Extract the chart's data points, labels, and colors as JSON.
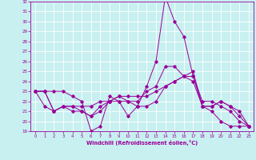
{
  "xlabel": "Windchill (Refroidissement éolien,°C)",
  "background_color": "#c8f0f0",
  "line_color": "#990099",
  "grid_color": "#ffffff",
  "xlim": [
    -0.5,
    23.5
  ],
  "ylim": [
    19,
    32
  ],
  "yticks": [
    19,
    20,
    21,
    22,
    23,
    24,
    25,
    26,
    27,
    28,
    29,
    30,
    31,
    32
  ],
  "xticks": [
    0,
    1,
    2,
    3,
    4,
    5,
    6,
    7,
    8,
    9,
    10,
    11,
    12,
    13,
    14,
    15,
    16,
    17,
    18,
    19,
    20,
    21,
    22,
    23
  ],
  "line1_x": [
    0,
    1,
    2,
    3,
    4,
    5,
    6,
    7,
    8,
    9,
    10,
    11,
    12,
    13,
    14,
    15,
    16,
    17,
    18,
    19,
    20,
    21,
    22,
    23
  ],
  "line1_y": [
    23.0,
    23.0,
    23.0,
    23.0,
    22.5,
    22.0,
    19.0,
    19.5,
    22.5,
    22.0,
    20.5,
    21.5,
    23.5,
    26.0,
    32.5,
    30.0,
    28.5,
    24.5,
    21.5,
    21.0,
    20.0,
    19.5,
    19.5,
    19.5
  ],
  "line2_x": [
    0,
    1,
    2,
    3,
    4,
    5,
    6,
    7,
    8,
    9,
    10,
    11,
    12,
    13,
    14,
    15,
    16,
    17,
    18,
    19,
    20,
    21,
    22,
    23
  ],
  "line2_y": [
    23.0,
    23.0,
    21.0,
    21.5,
    21.5,
    21.0,
    20.5,
    21.0,
    22.0,
    22.0,
    22.0,
    21.5,
    21.5,
    22.0,
    23.5,
    24.0,
    24.5,
    24.5,
    22.0,
    22.0,
    21.5,
    21.0,
    20.0,
    19.5
  ],
  "line3_x": [
    0,
    1,
    2,
    3,
    4,
    5,
    6,
    7,
    8,
    9,
    10,
    11,
    12,
    13,
    14,
    15,
    16,
    17,
    18,
    19,
    20,
    21,
    22,
    23
  ],
  "line3_y": [
    23.0,
    23.0,
    21.0,
    21.5,
    21.0,
    21.0,
    20.5,
    21.5,
    22.0,
    22.5,
    22.0,
    22.0,
    23.0,
    23.5,
    25.5,
    25.5,
    24.5,
    24.0,
    21.5,
    21.5,
    22.0,
    21.5,
    20.5,
    19.5
  ],
  "line4_x": [
    0,
    1,
    2,
    3,
    4,
    5,
    6,
    7,
    8,
    9,
    10,
    11,
    12,
    13,
    14,
    15,
    16,
    17,
    18,
    19,
    20,
    21,
    22,
    23
  ],
  "line4_y": [
    23.0,
    21.5,
    21.0,
    21.5,
    21.5,
    21.5,
    21.5,
    22.0,
    22.0,
    22.5,
    22.5,
    22.5,
    22.5,
    23.0,
    23.5,
    24.0,
    24.5,
    25.0,
    21.5,
    21.5,
    22.0,
    21.5,
    21.0,
    19.5
  ]
}
